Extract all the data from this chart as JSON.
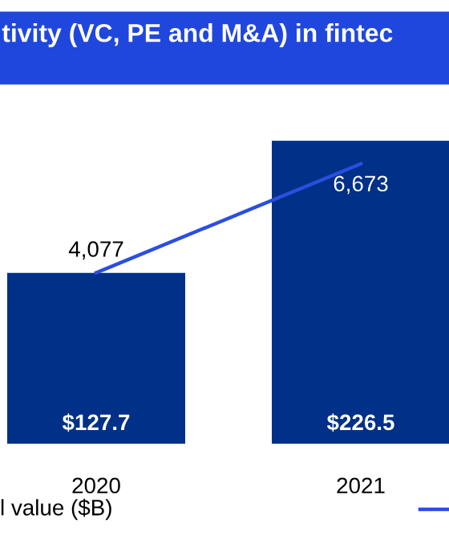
{
  "chart_data": {
    "type": "bar",
    "title": "tivity (VC, PE and M&A) in fintec",
    "categories": [
      "2020",
      "2021"
    ],
    "series": [
      {
        "name": "l value ($B)",
        "color": "#003087",
        "values": [
          127.7,
          226.5
        ],
        "value_labels": [
          "$127.7",
          "$226.5"
        ]
      },
      {
        "type": "line",
        "axis": "y2",
        "color": "#2b4ee0",
        "values": [
          4077,
          6673
        ],
        "value_labels": [
          "4,077",
          "6,673"
        ]
      }
    ],
    "legend": "bottom"
  }
}
